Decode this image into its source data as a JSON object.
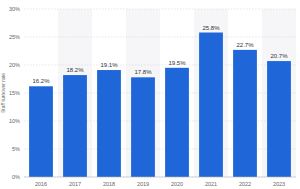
{
  "chart_data": {
    "type": "bar",
    "y_label": "Staff turnover rate",
    "categories": [
      "2016",
      "2017",
      "2018",
      "2019",
      "2020",
      "2021",
      "2022",
      "2023"
    ],
    "values": [
      16.2,
      18.2,
      19.1,
      17.8,
      19.5,
      25.8,
      22.7,
      20.7
    ],
    "value_labels": [
      "16.2%",
      "18.2%",
      "19.1%",
      "17.8%",
      "19.5%",
      "25.8%",
      "22.7%",
      "20.7%"
    ],
    "color": "#1f66d8",
    "ylim": [
      0,
      30
    ],
    "yticks": [
      {
        "value": 0,
        "label": "0%"
      },
      {
        "value": 5,
        "label": "5%"
      },
      {
        "value": 10,
        "label": "10%"
      },
      {
        "value": 15,
        "label": "15%"
      },
      {
        "value": 20,
        "label": "20%"
      },
      {
        "value": 25,
        "label": "25%"
      },
      {
        "value": 30,
        "label": "30%"
      }
    ],
    "grid": true,
    "data_labels": true
  }
}
